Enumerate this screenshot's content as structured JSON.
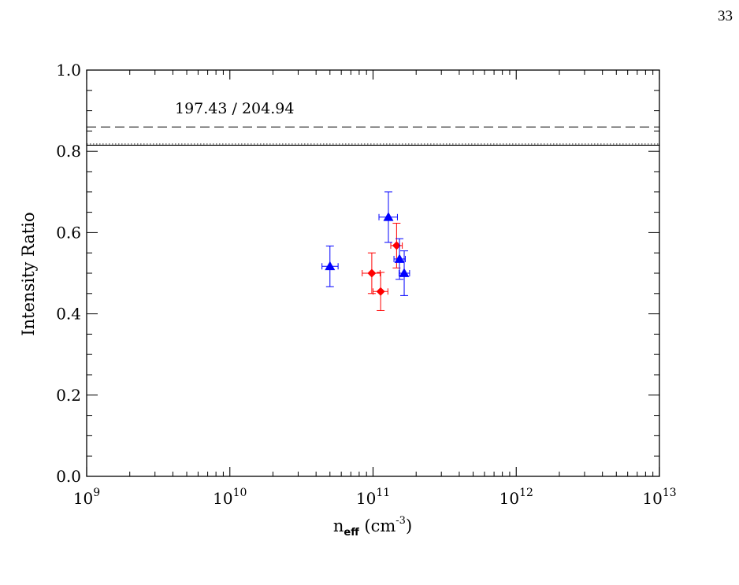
{
  "page_number": "33",
  "caption": "",
  "colors": {
    "series_a": "#ff0000",
    "series_b": "#0000ff",
    "axis": "#000000"
  },
  "chart_data": {
    "type": "scatter",
    "title": "",
    "annotation": "197.43 / 204.94",
    "xlabel": {
      "base": "n",
      "sub": "eff",
      "unit_open": " (cm",
      "sup": "-3",
      "unit_close": ")"
    },
    "ylabel": "Intensity Ratio",
    "x_scale": "log",
    "xlim": [
      1000000000.0,
      10000000000000.0
    ],
    "ylim": [
      0.0,
      1.0
    ],
    "x_ticks": [
      {
        "mantissa": "10",
        "exp": "9",
        "value": 1000000000.0
      },
      {
        "mantissa": "10",
        "exp": "10",
        "value": 10000000000.0
      },
      {
        "mantissa": "10",
        "exp": "11",
        "value": 100000000000.0
      },
      {
        "mantissa": "10",
        "exp": "12",
        "value": 1000000000000.0
      },
      {
        "mantissa": "10",
        "exp": "13",
        "value": 10000000000000.0
      }
    ],
    "y_ticks": [
      {
        "label": "0.0",
        "value": 0.0
      },
      {
        "label": "0.2",
        "value": 0.2
      },
      {
        "label": "0.4",
        "value": 0.4
      },
      {
        "label": "0.6",
        "value": 0.6
      },
      {
        "label": "0.8",
        "value": 0.8
      },
      {
        "label": "1.0",
        "value": 1.0
      }
    ],
    "reference_lines": [
      {
        "style": "dashed",
        "y": 0.86
      },
      {
        "style": "solid",
        "y": 0.815
      },
      {
        "style": "dotted",
        "y": 0.818
      }
    ],
    "series": [
      {
        "marker": "diamond",
        "color": "#ff0000",
        "points": [
          {
            "x": 98000000000.0,
            "y": 0.5,
            "x_lo": 84000000000.0,
            "x_hi": 112000000000.0,
            "y_err": 0.05
          },
          {
            "x": 113000000000.0,
            "y": 0.455,
            "x_lo": 100000000000.0,
            "x_hi": 127000000000.0,
            "y_err": 0.047
          },
          {
            "x": 146000000000.0,
            "y": 0.568,
            "x_lo": 133000000000.0,
            "x_hi": 160000000000.0,
            "y_err": 0.055
          }
        ]
      },
      {
        "marker": "triangle",
        "color": "#0000ff",
        "points": [
          {
            "x": 50000000000.0,
            "y": 0.517,
            "x_lo": 44000000000.0,
            "x_hi": 57000000000.0,
            "y_err": 0.05
          },
          {
            "x": 128000000000.0,
            "y": 0.638,
            "x_lo": 110000000000.0,
            "x_hi": 148000000000.0,
            "y_err": 0.062
          },
          {
            "x": 153000000000.0,
            "y": 0.535,
            "x_lo": 140000000000.0,
            "x_hi": 168000000000.0,
            "y_err": 0.05
          },
          {
            "x": 165000000000.0,
            "y": 0.5,
            "x_lo": 152000000000.0,
            "x_hi": 180000000000.0,
            "y_err": 0.055
          }
        ]
      }
    ]
  }
}
